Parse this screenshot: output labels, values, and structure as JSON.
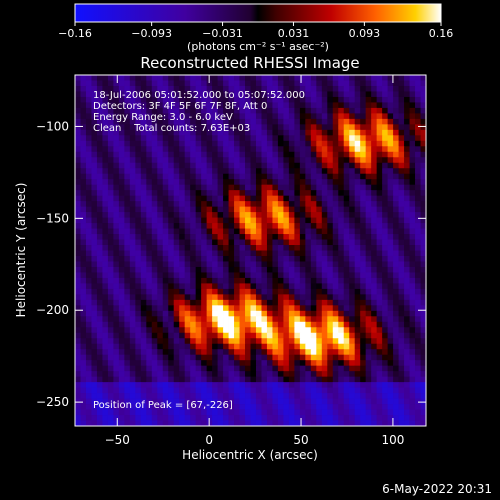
{
  "chart_data": {
    "type": "heatmap",
    "title": "Reconstructed RHESSI Image",
    "xlabel": "Heliocentric X (arcsec)",
    "ylabel": "Heliocentric Y (arcsec)",
    "xlim": [
      -73,
      118
    ],
    "ylim": [
      -263,
      -72
    ],
    "xticks": [
      -50,
      0,
      50,
      100
    ],
    "xtick_labels": [
      "−50",
      "0",
      "50",
      "100"
    ],
    "yticks": [
      -100,
      -150,
      -200,
      -250
    ],
    "ytick_labels": [
      "−100",
      "−150",
      "−200",
      "−250"
    ],
    "colorbar": {
      "range": [
        -0.16,
        0.16
      ],
      "ticks": [
        -0.16,
        -0.093,
        -0.031,
        0.031,
        0.093,
        0.16
      ],
      "tick_labels": [
        "−0.16",
        "−0.093",
        "−0.031",
        "0.031",
        "0.093",
        "0.16"
      ],
      "unit_label": "(photons cm⁻² s⁻¹ asec⁻²)"
    },
    "annotations": {
      "time_range": "18-Jul-2006 05:01:52.000 to 05:07:52.000",
      "detectors": "Detectors: 3F 4F 5F 6F 7F 8F, Att 0",
      "energy_range": "Energy Range: 3.0 - 6.0 keV",
      "method_counts": "Clean    Total counts: 7.63E+03",
      "peak": "Position of Peak = [67,-226]"
    },
    "sources": [
      {
        "x": 85,
        "y": -108,
        "peak": 0.12
      },
      {
        "x": 10,
        "y": -205,
        "peak": 0.15
      },
      {
        "x": 60,
        "y": -215,
        "peak": 0.15
      },
      {
        "x": 30,
        "y": -150,
        "peak": 0.1
      }
    ]
  },
  "footer": {
    "date": "6-May-2022 20:31"
  }
}
